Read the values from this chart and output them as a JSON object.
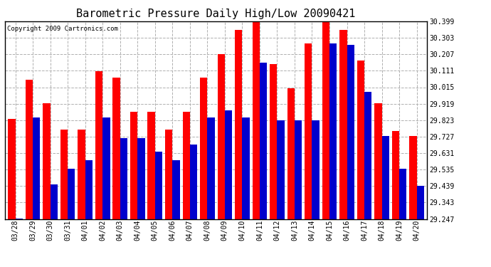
{
  "title": "Barometric Pressure Daily High/Low 20090421",
  "copyright": "Copyright 2009 Cartronics.com",
  "dates": [
    "03/28",
    "03/29",
    "03/30",
    "03/31",
    "04/01",
    "04/02",
    "04/03",
    "04/04",
    "04/05",
    "04/06",
    "04/07",
    "04/08",
    "04/09",
    "04/10",
    "04/11",
    "04/12",
    "04/13",
    "04/14",
    "04/15",
    "04/16",
    "04/17",
    "04/18",
    "04/19",
    "04/20"
  ],
  "highs": [
    29.83,
    30.06,
    29.92,
    29.77,
    29.77,
    30.11,
    30.07,
    29.87,
    29.87,
    29.77,
    29.87,
    30.07,
    30.21,
    30.35,
    30.4,
    30.15,
    30.01,
    30.27,
    30.42,
    30.35,
    30.17,
    29.92,
    29.76,
    29.73
  ],
  "lows": [
    29.25,
    29.84,
    29.45,
    29.54,
    29.59,
    29.84,
    29.72,
    29.72,
    29.64,
    29.59,
    29.68,
    29.84,
    29.88,
    29.84,
    30.16,
    29.82,
    29.82,
    29.82,
    30.27,
    30.26,
    29.99,
    29.73,
    29.54,
    29.44
  ],
  "y_ticks": [
    29.247,
    29.343,
    29.439,
    29.535,
    29.631,
    29.727,
    29.823,
    29.919,
    30.015,
    30.111,
    30.207,
    30.303,
    30.399
  ],
  "y_min": 29.247,
  "y_max": 30.399,
  "bar_color_high": "#ff0000",
  "bar_color_low": "#0000cc",
  "bg_color": "#ffffff",
  "grid_color": "#b0b0b0",
  "title_fontsize": 11,
  "tick_fontsize": 7,
  "bar_width": 0.42
}
